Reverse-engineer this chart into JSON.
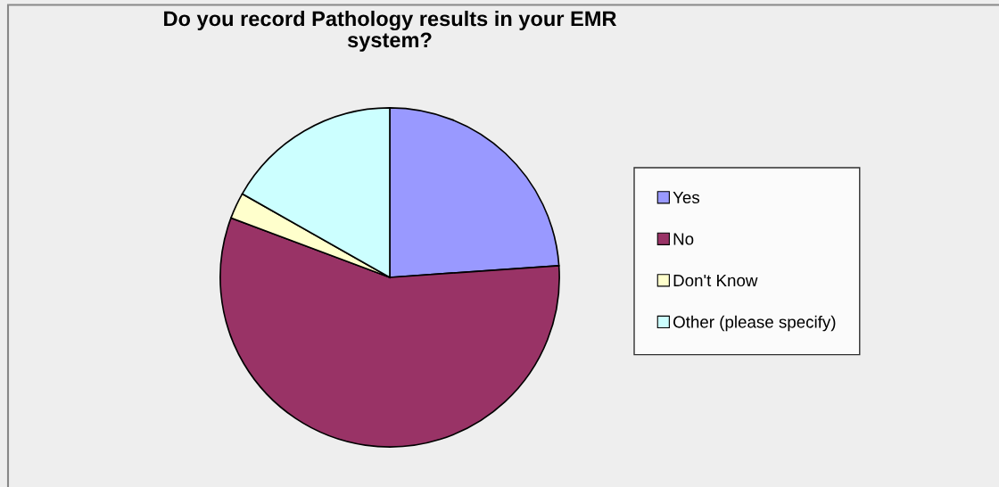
{
  "chart_data": {
    "type": "pie",
    "title": "Do you record Pathology results in your EMR\nsystem?",
    "categories": [
      "Yes",
      "No",
      "Don't Know",
      "Other (please specify)"
    ],
    "values": [
      23.9,
      56.8,
      2.5,
      16.8
    ],
    "colors": [
      "#9999ff",
      "#993366",
      "#ffffcc",
      "#ccffff"
    ],
    "legend": "right"
  }
}
